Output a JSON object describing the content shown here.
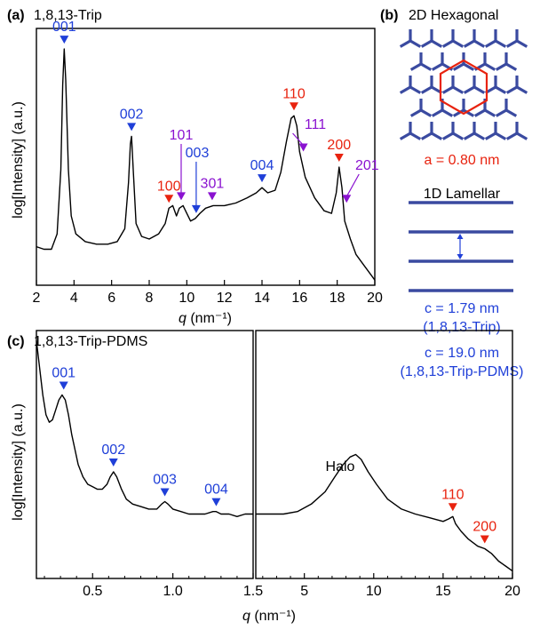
{
  "colors": {
    "text": "#000000",
    "blue": "#1f3fd8",
    "red": "#e8230f",
    "purple": "#8a12d0",
    "lattice": "#3a4aa0",
    "cell": "#e8230f"
  },
  "panel_a": {
    "letter": "(a)",
    "title": "1,8,13-Trip",
    "ylabel": "log[Intensity] (a.u.)",
    "xlabel_q": "q",
    "xlabel_unit": " (nm⁻¹)"
  },
  "panel_b": {
    "letter": "(b)",
    "title": "2D Hexagonal",
    "hex_param": "a = 0.80 nm",
    "lamellar_title": "1D Lamellar",
    "c_trip": "c = 1.79 nm",
    "c_trip_sample": "(1,8,13-Trip)",
    "c_pdms": "c = 19.0 nm",
    "c_pdms_sample": "(1,8,13-Trip-PDMS)"
  },
  "panel_c": {
    "letter": "(c)",
    "title": "1,8,13-Trip-PDMS",
    "ylabel": "log[Intensity] (a.u.)",
    "xlabel_q": "q",
    "xlabel_unit": " (nm⁻¹)",
    "halo_label": "Halo"
  },
  "chart_data": [
    {
      "type": "line",
      "panel": "a",
      "title": "1,8,13-Trip",
      "xlabel": "q (nm⁻¹)",
      "ylabel": "log[Intensity] (a.u.)",
      "xlim": [
        2,
        20
      ],
      "ylim": [
        0,
        1
      ],
      "xticks": [
        2,
        4,
        6,
        8,
        10,
        12,
        14,
        16,
        18,
        20
      ],
      "yticks": [],
      "grid": false,
      "series": [
        {
          "x": [
            2.0,
            2.4,
            2.8,
            3.1,
            3.3,
            3.4,
            3.48,
            3.56,
            3.7,
            3.85,
            4.1,
            4.6,
            5.2,
            5.8,
            6.3,
            6.7,
            6.9,
            7.0,
            7.06,
            7.15,
            7.3,
            7.6,
            8.0,
            8.5,
            8.85,
            9.05,
            9.25,
            9.45,
            9.6,
            9.8,
            10.0,
            10.2,
            10.45,
            10.7,
            11.0,
            11.4,
            12.0,
            12.6,
            13.2,
            13.7,
            14.0,
            14.3,
            14.7,
            15.0,
            15.3,
            15.55,
            15.7,
            15.85,
            16.0,
            16.3,
            16.8,
            17.3,
            17.7,
            17.95,
            18.1,
            18.25,
            18.4,
            18.7,
            19.0,
            19.4,
            19.8,
            20.0
          ],
          "y": [
            0.15,
            0.14,
            0.14,
            0.2,
            0.45,
            0.78,
            0.92,
            0.8,
            0.45,
            0.27,
            0.2,
            0.17,
            0.16,
            0.16,
            0.17,
            0.22,
            0.4,
            0.55,
            0.58,
            0.45,
            0.24,
            0.19,
            0.18,
            0.2,
            0.24,
            0.3,
            0.31,
            0.27,
            0.3,
            0.31,
            0.28,
            0.25,
            0.26,
            0.28,
            0.3,
            0.31,
            0.31,
            0.32,
            0.34,
            0.36,
            0.38,
            0.36,
            0.37,
            0.44,
            0.56,
            0.65,
            0.66,
            0.62,
            0.52,
            0.42,
            0.34,
            0.29,
            0.28,
            0.36,
            0.46,
            0.38,
            0.25,
            0.18,
            0.12,
            0.08,
            0.04,
            0.02
          ]
        }
      ],
      "annotations": [
        {
          "label": "001",
          "q": 3.48,
          "y": 0.92,
          "color": "blue"
        },
        {
          "label": "002",
          "q": 7.06,
          "y": 0.58,
          "color": "blue"
        },
        {
          "label": "100",
          "q": 9.05,
          "y": 0.3,
          "color": "red"
        },
        {
          "label": "101",
          "q": 9.7,
          "y": 0.31,
          "color": "purple"
        },
        {
          "label": "003",
          "q": 10.5,
          "y": 0.26,
          "color": "blue"
        },
        {
          "label": "301",
          "q": 11.35,
          "y": 0.31,
          "color": "purple"
        },
        {
          "label": "004",
          "q": 14.0,
          "y": 0.38,
          "color": "blue"
        },
        {
          "label": "110",
          "q": 15.7,
          "y": 0.66,
          "color": "red"
        },
        {
          "label": "111",
          "q": 16.2,
          "y": 0.5,
          "color": "purple"
        },
        {
          "label": "200",
          "q": 18.1,
          "y": 0.46,
          "color": "red"
        },
        {
          "label": "201",
          "q": 18.5,
          "y": 0.3,
          "color": "purple"
        }
      ]
    },
    {
      "type": "line",
      "panel": "c-left",
      "title": "1,8,13-Trip-PDMS",
      "xlabel": "q (nm⁻¹)",
      "ylabel": "log[Intensity] (a.u.)",
      "xlim": [
        0.15,
        1.5
      ],
      "ylim": [
        0,
        1
      ],
      "xticks": [
        0.5,
        1.0,
        1.5
      ],
      "yticks": [],
      "grid": false,
      "series": [
        {
          "x": [
            0.15,
            0.17,
            0.19,
            0.21,
            0.23,
            0.25,
            0.27,
            0.29,
            0.31,
            0.33,
            0.35,
            0.37,
            0.39,
            0.41,
            0.44,
            0.47,
            0.5,
            0.53,
            0.56,
            0.59,
            0.61,
            0.63,
            0.65,
            0.68,
            0.71,
            0.75,
            0.8,
            0.85,
            0.9,
            0.93,
            0.95,
            0.97,
            1.0,
            1.05,
            1.1,
            1.15,
            1.2,
            1.25,
            1.27,
            1.3,
            1.35,
            1.4,
            1.45,
            1.5
          ],
          "y": [
            0.96,
            0.85,
            0.74,
            0.66,
            0.63,
            0.64,
            0.68,
            0.72,
            0.74,
            0.72,
            0.66,
            0.58,
            0.52,
            0.46,
            0.41,
            0.38,
            0.37,
            0.36,
            0.36,
            0.38,
            0.41,
            0.43,
            0.41,
            0.36,
            0.32,
            0.3,
            0.29,
            0.28,
            0.28,
            0.3,
            0.31,
            0.3,
            0.28,
            0.27,
            0.26,
            0.26,
            0.26,
            0.27,
            0.27,
            0.26,
            0.26,
            0.25,
            0.26,
            0.26
          ]
        }
      ],
      "annotations": [
        {
          "label": "001",
          "q": 0.32,
          "y": 0.74,
          "color": "blue"
        },
        {
          "label": "002",
          "q": 0.63,
          "y": 0.43,
          "color": "blue"
        },
        {
          "label": "003",
          "q": 0.95,
          "y": 0.31,
          "color": "blue"
        },
        {
          "label": "004",
          "q": 1.27,
          "y": 0.27,
          "color": "blue"
        }
      ]
    },
    {
      "type": "line",
      "panel": "c-right",
      "xlabel": "q (nm⁻¹)",
      "xlim": [
        1.5,
        20
      ],
      "ylim": [
        0,
        1
      ],
      "xticks": [
        5,
        10,
        15,
        20
      ],
      "yticks": [],
      "grid": false,
      "series": [
        {
          "x": [
            1.5,
            2.5,
            3.5,
            4.5,
            5.5,
            6.5,
            7.2,
            7.8,
            8.3,
            8.7,
            9.1,
            9.6,
            10.2,
            11.0,
            12.0,
            13.0,
            14.0,
            15.0,
            15.4,
            15.7,
            15.9,
            16.3,
            16.8,
            17.5,
            18.0,
            18.5,
            19.0,
            19.5,
            20.0
          ],
          "y": [
            0.26,
            0.26,
            0.26,
            0.27,
            0.3,
            0.35,
            0.41,
            0.46,
            0.49,
            0.5,
            0.48,
            0.43,
            0.38,
            0.32,
            0.28,
            0.26,
            0.245,
            0.23,
            0.24,
            0.25,
            0.22,
            0.19,
            0.16,
            0.13,
            0.12,
            0.1,
            0.07,
            0.05,
            0.03
          ]
        }
      ],
      "annotations": [
        {
          "label": "110",
          "q": 15.7,
          "y": 0.25,
          "color": "red"
        },
        {
          "label": "200",
          "q": 18.0,
          "y": 0.12,
          "color": "red"
        }
      ]
    }
  ]
}
